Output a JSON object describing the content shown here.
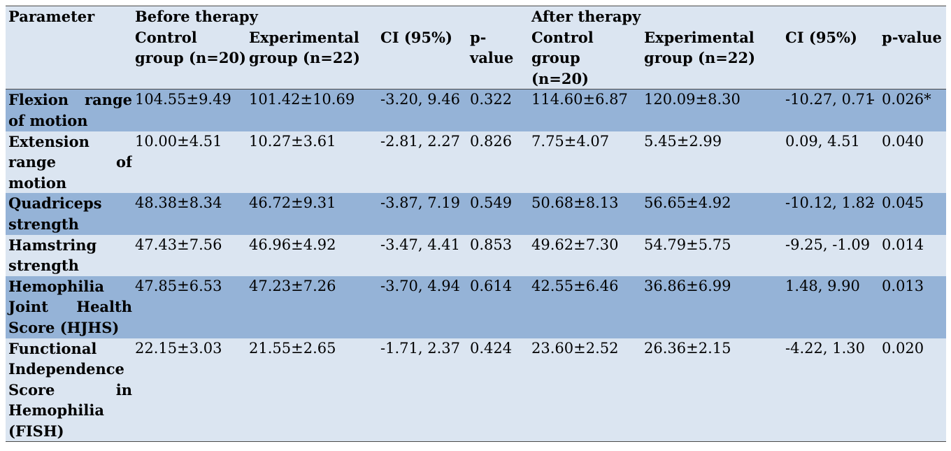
{
  "header": {
    "parameter": "Parameter",
    "before": "Before therapy",
    "after": "After therapy",
    "sub": {
      "control": "Control group (n=20)",
      "experimental": "Experimental group (n=22)",
      "ci": "CI (95%)",
      "p": "p-value"
    }
  },
  "rows": [
    {
      "param": "Flexion range of motion",
      "before": {
        "control": "104.55±9.49",
        "experimental": "101.42±10.69",
        "ci": "-3.20, 9.46",
        "p": "0.322"
      },
      "after": {
        "control": "114.60±6.87",
        "experimental": "120.09±8.30",
        "ci": "-10.27, 0.71",
        "ci_dash": "-",
        "p": "0.026*"
      }
    },
    {
      "param": "Extension range of motion",
      "before": {
        "control": "10.00±4.51",
        "experimental": "10.27±3.61",
        "ci": "-2.81, 2.27",
        "p": "0.826"
      },
      "after": {
        "control": "7.75±4.07",
        "experimental": "5.45±2.99",
        "ci": "0.09, 4.51",
        "ci_dash": "",
        "p": "0.040"
      }
    },
    {
      "param": "Quadriceps strength",
      "before": {
        "control": "48.38±8.34",
        "experimental": "46.72±9.31",
        "ci": "-3.87, 7.19",
        "p": "0.549"
      },
      "after": {
        "control": "50.68±8.13",
        "experimental": "56.65±4.92",
        "ci": "-10.12, 1.82",
        "ci_dash": "-",
        "p": "0.045"
      }
    },
    {
      "param": "Hamstring strength",
      "before": {
        "control": "47.43±7.56",
        "experimental": "46.96±4.92",
        "ci": "-3.47, 4.41",
        "p": "0.853"
      },
      "after": {
        "control": "49.62±7.30",
        "experimental": "54.79±5.75",
        "ci": "-9.25, -1.09",
        "ci_dash": "",
        "p": "0.014"
      }
    },
    {
      "param": "Hemophilia Joint Health Score (HJHS)",
      "before": {
        "control": "47.85±6.53",
        "experimental": "47.23±7.26",
        "ci": "-3.70, 4.94",
        "p": "0.614"
      },
      "after": {
        "control": "42.55±6.46",
        "experimental": "36.86±6.99",
        "ci": "1.48, 9.90",
        "ci_dash": "",
        "p": "0.013"
      }
    },
    {
      "param": "Functional Independence Score in Hemophilia (FISH)",
      "before": {
        "control": "22.15±3.03",
        "experimental": "21.55±2.65",
        "ci": "-1.71, 2.37",
        "p": "0.424"
      },
      "after": {
        "control": "23.60±2.52",
        "experimental": "26.36±2.15",
        "ci": "-4.22, 1.30",
        "ci_dash": "",
        "p": "0.020"
      }
    }
  ],
  "colors": {
    "header_bg": "#dbe5f1",
    "row_dark": "#95b3d7",
    "row_light": "#dbe5f1",
    "rule": "#4a4a4a"
  }
}
